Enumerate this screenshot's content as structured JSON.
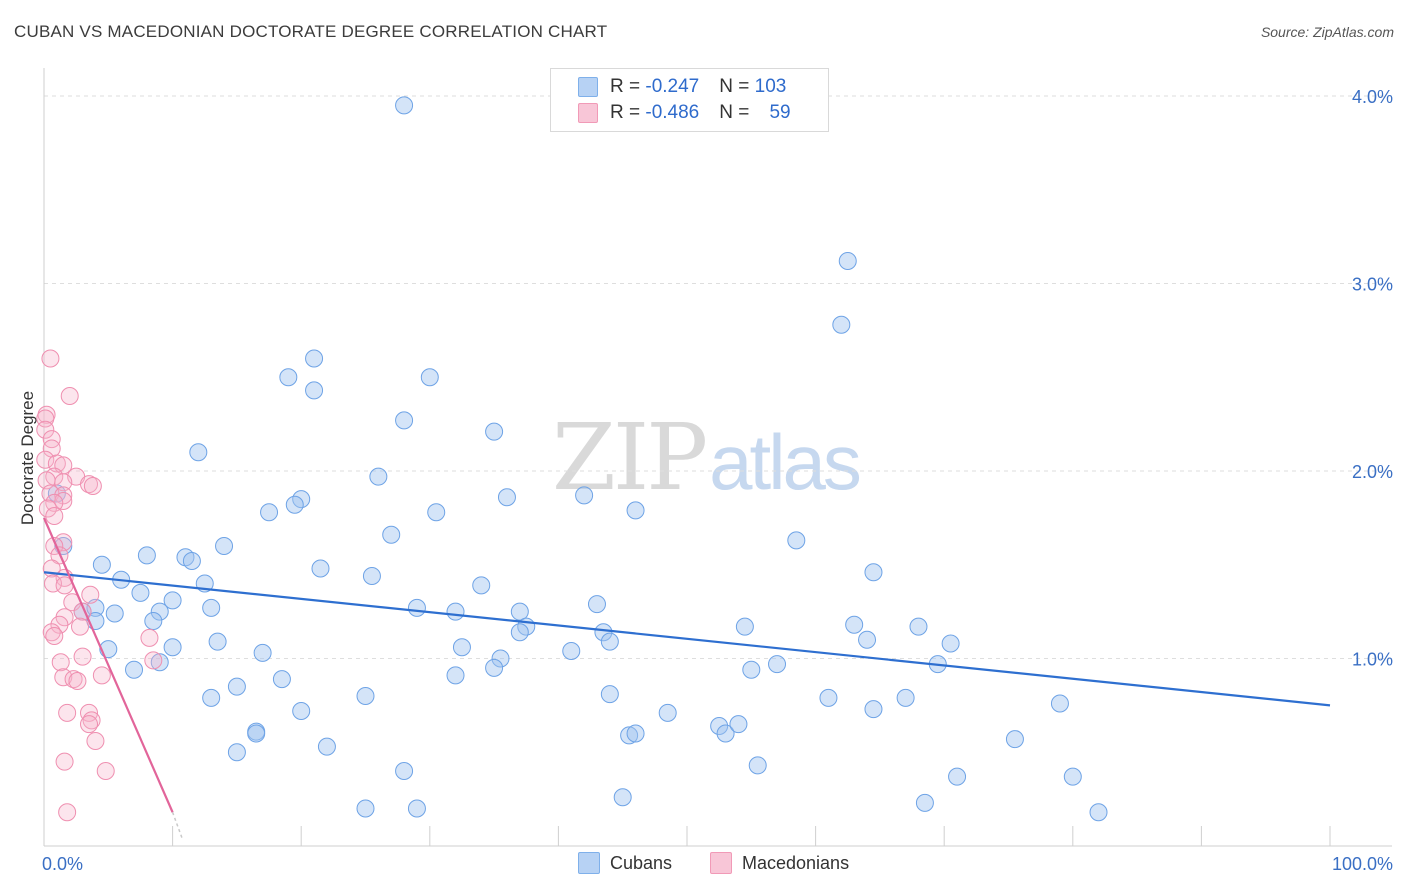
{
  "title": "CUBAN VS MACEDONIAN DOCTORATE DEGREE CORRELATION CHART",
  "source": "Source: ZipAtlas.com",
  "watermark": {
    "zip": "ZIP",
    "atlas": "atlas"
  },
  "legend": {
    "r_label": "R = ",
    "n_label": "N = ",
    "items": [
      {
        "name": "Cubans",
        "r": "-0.247",
        "n": "103",
        "color": "#7fb0ea",
        "fill": "#b7d2f4"
      },
      {
        "name": "Macedonians",
        "r": "-0.486",
        "n": "59",
        "color": "#f19ab7",
        "fill": "#f8c6d7"
      }
    ]
  },
  "chart_data": {
    "type": "scatter",
    "title": "CUBAN VS MACEDONIAN DOCTORATE DEGREE CORRELATION CHART",
    "xlabel": "",
    "ylabel": "Doctorate Degree",
    "xlim": [
      0,
      100
    ],
    "ylim": [
      0,
      4.15
    ],
    "x_tick_labels": [
      "0.0%",
      "100.0%"
    ],
    "y_ticks": [
      1.0,
      2.0,
      3.0,
      4.0
    ],
    "y_tick_labels": [
      "1.0%",
      "2.0%",
      "3.0%",
      "4.0%"
    ],
    "grid": true,
    "series": [
      {
        "name": "Cubans",
        "color": "#6ea3e6",
        "trend": {
          "x": [
            0,
            100
          ],
          "y": [
            1.46,
            0.75
          ],
          "color": "#2e6fd0"
        },
        "points": [
          [
            28,
            3.95
          ],
          [
            62.5,
            3.12
          ],
          [
            62,
            2.78
          ],
          [
            21,
            2.6
          ],
          [
            19,
            2.5
          ],
          [
            30,
            2.5
          ],
          [
            21,
            2.43
          ],
          [
            28,
            2.27
          ],
          [
            35,
            2.21
          ],
          [
            12,
            2.1
          ],
          [
            26,
            1.97
          ],
          [
            1,
            1.88
          ],
          [
            36,
            1.86
          ],
          [
            42,
            1.87
          ],
          [
            20,
            1.85
          ],
          [
            19.5,
            1.82
          ],
          [
            17.5,
            1.78
          ],
          [
            30.5,
            1.78
          ],
          [
            46,
            1.79
          ],
          [
            27,
            1.66
          ],
          [
            58.5,
            1.63
          ],
          [
            14,
            1.6
          ],
          [
            1.5,
            1.6
          ],
          [
            8,
            1.55
          ],
          [
            11,
            1.54
          ],
          [
            11.5,
            1.52
          ],
          [
            4.5,
            1.5
          ],
          [
            21.5,
            1.48
          ],
          [
            64.5,
            1.46
          ],
          [
            25.5,
            1.44
          ],
          [
            6,
            1.42
          ],
          [
            12.5,
            1.4
          ],
          [
            34,
            1.39
          ],
          [
            7.5,
            1.35
          ],
          [
            10,
            1.31
          ],
          [
            43,
            1.29
          ],
          [
            13,
            1.27
          ],
          [
            29,
            1.27
          ],
          [
            9,
            1.25
          ],
          [
            32,
            1.25
          ],
          [
            37,
            1.25
          ],
          [
            3,
            1.25
          ],
          [
            5.5,
            1.24
          ],
          [
            4,
            1.27
          ],
          [
            8.5,
            1.2
          ],
          [
            4,
            1.2
          ],
          [
            63,
            1.18
          ],
          [
            68,
            1.17
          ],
          [
            54.5,
            1.17
          ],
          [
            37.5,
            1.17
          ],
          [
            37,
            1.14
          ],
          [
            43.5,
            1.14
          ],
          [
            64,
            1.1
          ],
          [
            13.5,
            1.09
          ],
          [
            44,
            1.09
          ],
          [
            70.5,
            1.08
          ],
          [
            32.5,
            1.06
          ],
          [
            10,
            1.06
          ],
          [
            5,
            1.05
          ],
          [
            41,
            1.04
          ],
          [
            17,
            1.03
          ],
          [
            9,
            0.98
          ],
          [
            35.5,
            1.0
          ],
          [
            57,
            0.97
          ],
          [
            69.5,
            0.97
          ],
          [
            55,
            0.94
          ],
          [
            35,
            0.95
          ],
          [
            7,
            0.94
          ],
          [
            32,
            0.91
          ],
          [
            18.5,
            0.89
          ],
          [
            15,
            0.85
          ],
          [
            44,
            0.81
          ],
          [
            25,
            0.8
          ],
          [
            61,
            0.79
          ],
          [
            13,
            0.79
          ],
          [
            67,
            0.79
          ],
          [
            79,
            0.76
          ],
          [
            20,
            0.72
          ],
          [
            48.5,
            0.71
          ],
          [
            64.5,
            0.73
          ],
          [
            52.5,
            0.64
          ],
          [
            53,
            0.6
          ],
          [
            54,
            0.65
          ],
          [
            16.5,
            0.61
          ],
          [
            16.5,
            0.6
          ],
          [
            45.5,
            0.59
          ],
          [
            46,
            0.6
          ],
          [
            75.5,
            0.57
          ],
          [
            22,
            0.53
          ],
          [
            15,
            0.5
          ],
          [
            55.5,
            0.43
          ],
          [
            28,
            0.4
          ],
          [
            71,
            0.37
          ],
          [
            80,
            0.37
          ],
          [
            45,
            0.26
          ],
          [
            68.5,
            0.23
          ],
          [
            25,
            0.2
          ],
          [
            29,
            0.2
          ],
          [
            82,
            0.18
          ]
        ]
      },
      {
        "name": "Macedonians",
        "color": "#ef8fb0",
        "trend": {
          "x": [
            0,
            10
          ],
          "y": [
            1.75,
            0.18
          ],
          "dashed_extension": {
            "x": [
              10,
              10.8
            ],
            "y": [
              0.18,
              0.03
            ]
          },
          "color": "#e2659a"
        },
        "points": [
          [
            0.5,
            2.6
          ],
          [
            2,
            2.4
          ],
          [
            0.2,
            2.3
          ],
          [
            0.1,
            2.28
          ],
          [
            0.1,
            2.22
          ],
          [
            0.6,
            2.17
          ],
          [
            0.6,
            2.12
          ],
          [
            0.1,
            2.06
          ],
          [
            1,
            2.04
          ],
          [
            1.5,
            2.03
          ],
          [
            0.8,
            1.97
          ],
          [
            2.5,
            1.97
          ],
          [
            1.5,
            1.94
          ],
          [
            0.2,
            1.95
          ],
          [
            3.5,
            1.93
          ],
          [
            3.8,
            1.92
          ],
          [
            0.5,
            1.88
          ],
          [
            1.5,
            1.87
          ],
          [
            1.5,
            1.84
          ],
          [
            0.8,
            1.83
          ],
          [
            0.3,
            1.8
          ],
          [
            0.8,
            1.76
          ],
          [
            1.5,
            1.62
          ],
          [
            0.8,
            1.6
          ],
          [
            1.2,
            1.55
          ],
          [
            0.6,
            1.48
          ],
          [
            1.6,
            1.43
          ],
          [
            0.7,
            1.4
          ],
          [
            1.6,
            1.39
          ],
          [
            3.6,
            1.34
          ],
          [
            2.2,
            1.3
          ],
          [
            3,
            1.25
          ],
          [
            1.6,
            1.22
          ],
          [
            1.2,
            1.18
          ],
          [
            2.8,
            1.17
          ],
          [
            0.6,
            1.14
          ],
          [
            0.8,
            1.12
          ],
          [
            8.2,
            1.11
          ],
          [
            3,
            1.01
          ],
          [
            8.5,
            0.99
          ],
          [
            1.3,
            0.98
          ],
          [
            4.5,
            0.91
          ],
          [
            1.5,
            0.9
          ],
          [
            2.3,
            0.89
          ],
          [
            2.6,
            0.88
          ],
          [
            3.5,
            0.71
          ],
          [
            1.8,
            0.71
          ],
          [
            3.7,
            0.67
          ],
          [
            3.5,
            0.65
          ],
          [
            4,
            0.56
          ],
          [
            1.6,
            0.45
          ],
          [
            4.8,
            0.4
          ],
          [
            1.8,
            0.18
          ]
        ]
      }
    ]
  }
}
